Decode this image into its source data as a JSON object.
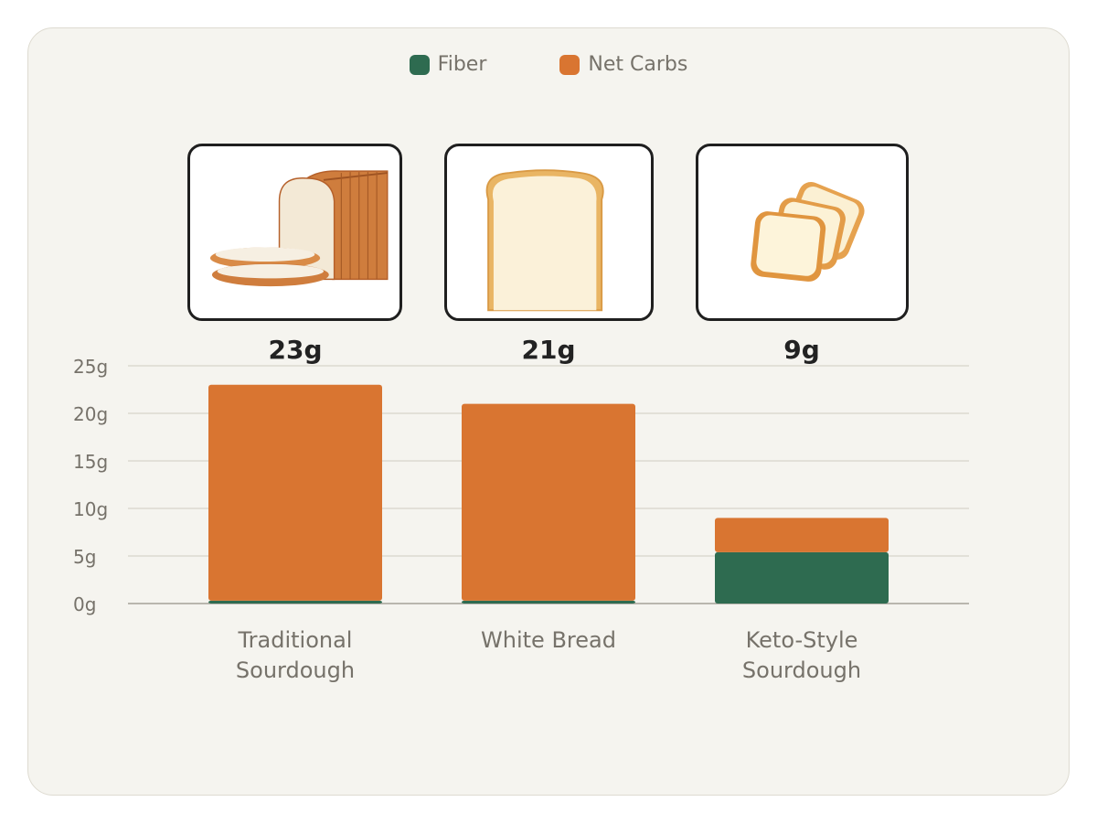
{
  "chart_data": {
    "type": "bar",
    "stacked": true,
    "categories": [
      "Traditional\nSourdough",
      "White Bread",
      "Keto-Style\nSourdough"
    ],
    "series": [
      {
        "name": "Fiber",
        "values": [
          0.3,
          0.3,
          5.4
        ],
        "color": "#2e6b50"
      },
      {
        "name": "Net Carbs",
        "values": [
          22.7,
          20.7,
          3.6
        ],
        "color": "#d97531"
      }
    ],
    "totals": [
      23,
      21,
      9
    ],
    "total_labels": [
      "23g",
      "21g",
      "9g"
    ],
    "ylim": [
      0,
      25
    ],
    "yticks": [
      0,
      5,
      10,
      15,
      20,
      25
    ],
    "ytick_labels": [
      "0g",
      "5g",
      "10g",
      "15g",
      "20g",
      "25g"
    ],
    "grid": true,
    "legend_position": "top-center",
    "images": [
      "bread-loaf-icon",
      "bread-slice-icon",
      "toast-slices-icon"
    ]
  }
}
